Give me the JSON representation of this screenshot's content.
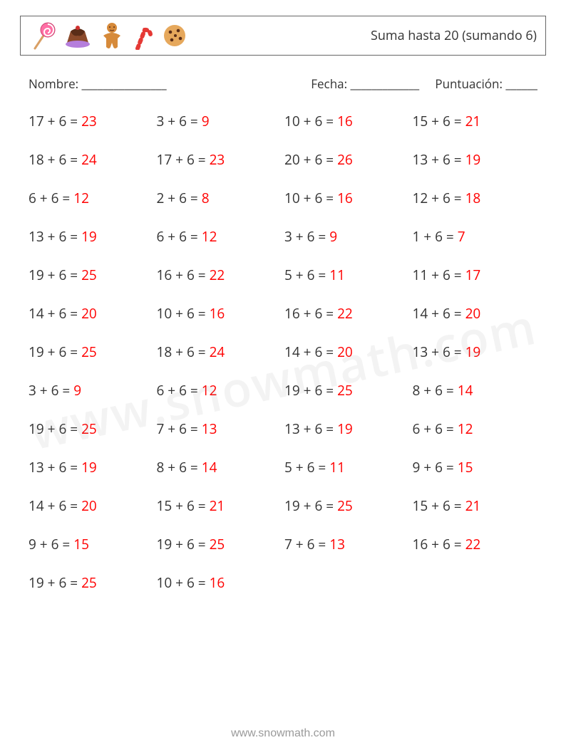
{
  "header": {
    "title": "Suma hasta 20 (sumando 6)",
    "icons": [
      "lollipop-icon",
      "pudding-icon",
      "gingerbread-icon",
      "candy-cane-icon",
      "cookie-icon"
    ]
  },
  "info": {
    "name_label": "Nombre: ________________",
    "date_label": "Fecha: _____________",
    "score_label": "Puntuación: ______"
  },
  "style": {
    "text_color": "#333333",
    "answer_color": "#ff0000",
    "border_color": "#666666",
    "background": "#ffffff",
    "font_size_problem": 19,
    "font_size_header": 18,
    "columns": 4,
    "row_gap": 28
  },
  "problems": [
    {
      "a": 17,
      "b": 6,
      "ans": 23
    },
    {
      "a": 3,
      "b": 6,
      "ans": 9
    },
    {
      "a": 10,
      "b": 6,
      "ans": 16
    },
    {
      "a": 15,
      "b": 6,
      "ans": 21
    },
    {
      "a": 18,
      "b": 6,
      "ans": 24
    },
    {
      "a": 17,
      "b": 6,
      "ans": 23
    },
    {
      "a": 20,
      "b": 6,
      "ans": 26
    },
    {
      "a": 13,
      "b": 6,
      "ans": 19
    },
    {
      "a": 6,
      "b": 6,
      "ans": 12
    },
    {
      "a": 2,
      "b": 6,
      "ans": 8
    },
    {
      "a": 10,
      "b": 6,
      "ans": 16
    },
    {
      "a": 12,
      "b": 6,
      "ans": 18
    },
    {
      "a": 13,
      "b": 6,
      "ans": 19
    },
    {
      "a": 6,
      "b": 6,
      "ans": 12
    },
    {
      "a": 3,
      "b": 6,
      "ans": 9
    },
    {
      "a": 1,
      "b": 6,
      "ans": 7
    },
    {
      "a": 19,
      "b": 6,
      "ans": 25
    },
    {
      "a": 16,
      "b": 6,
      "ans": 22
    },
    {
      "a": 5,
      "b": 6,
      "ans": 11
    },
    {
      "a": 11,
      "b": 6,
      "ans": 17
    },
    {
      "a": 14,
      "b": 6,
      "ans": 20
    },
    {
      "a": 10,
      "b": 6,
      "ans": 16
    },
    {
      "a": 16,
      "b": 6,
      "ans": 22
    },
    {
      "a": 14,
      "b": 6,
      "ans": 20
    },
    {
      "a": 19,
      "b": 6,
      "ans": 25
    },
    {
      "a": 18,
      "b": 6,
      "ans": 24
    },
    {
      "a": 14,
      "b": 6,
      "ans": 20
    },
    {
      "a": 13,
      "b": 6,
      "ans": 19
    },
    {
      "a": 3,
      "b": 6,
      "ans": 9
    },
    {
      "a": 6,
      "b": 6,
      "ans": 12
    },
    {
      "a": 19,
      "b": 6,
      "ans": 25
    },
    {
      "a": 8,
      "b": 6,
      "ans": 14
    },
    {
      "a": 19,
      "b": 6,
      "ans": 25
    },
    {
      "a": 7,
      "b": 6,
      "ans": 13
    },
    {
      "a": 13,
      "b": 6,
      "ans": 19
    },
    {
      "a": 6,
      "b": 6,
      "ans": 12
    },
    {
      "a": 13,
      "b": 6,
      "ans": 19
    },
    {
      "a": 8,
      "b": 6,
      "ans": 14
    },
    {
      "a": 5,
      "b": 6,
      "ans": 11
    },
    {
      "a": 9,
      "b": 6,
      "ans": 15
    },
    {
      "a": 14,
      "b": 6,
      "ans": 20
    },
    {
      "a": 15,
      "b": 6,
      "ans": 21
    },
    {
      "a": 19,
      "b": 6,
      "ans": 25
    },
    {
      "a": 15,
      "b": 6,
      "ans": 21
    },
    {
      "a": 9,
      "b": 6,
      "ans": 15
    },
    {
      "a": 19,
      "b": 6,
      "ans": 25
    },
    {
      "a": 7,
      "b": 6,
      "ans": 13
    },
    {
      "a": 16,
      "b": 6,
      "ans": 22
    },
    {
      "a": 19,
      "b": 6,
      "ans": 25
    },
    {
      "a": 10,
      "b": 6,
      "ans": 16
    }
  ],
  "watermark": "www.snowmath.com",
  "footer": "www.snowmath.com"
}
